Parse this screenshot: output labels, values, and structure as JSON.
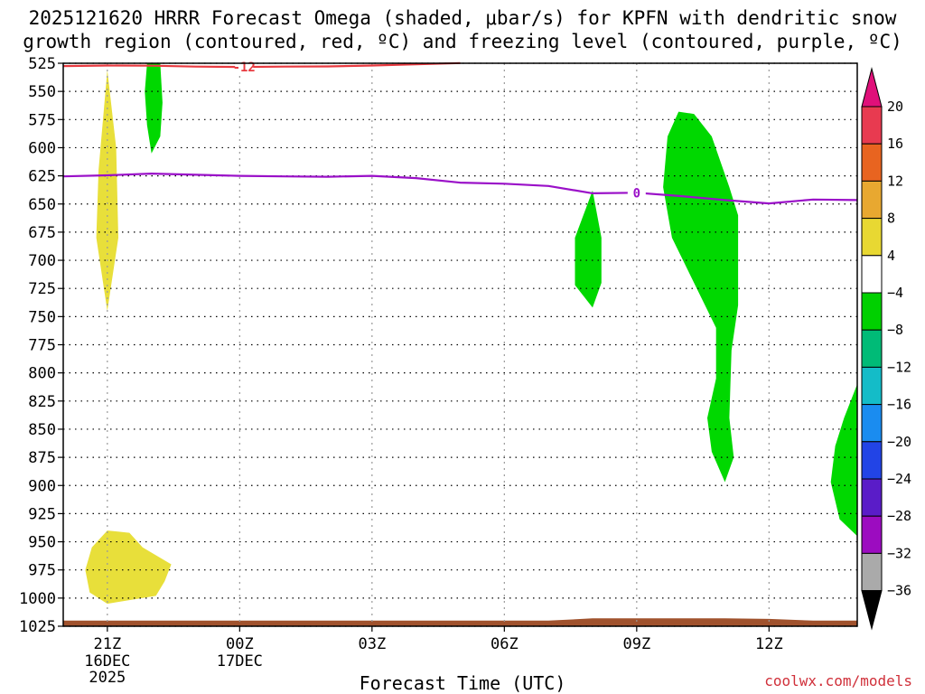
{
  "title_line1": "2025121620 HRRR Forecast Omega (shaded, μbar/s) for KPFN with dendritic snow",
  "title_line2": "growth region (contoured, red, ºC) and freezing level (contoured, purple, ºC)",
  "credit": "coolwx.com/models",
  "chart_data": {
    "type": "time-height",
    "title": "2025121620 HRRR Forecast Omega (shaded, μbar/s) for KPFN with dendritic snow growth region (contoured, red, ºC) and freezing level (contoured, purple, ºC)",
    "xlabel": "Forecast Time (UTC)",
    "ylabel": "",
    "xlim": [
      20,
      38
    ],
    "ylim": [
      525,
      1025
    ],
    "y_inverted": true,
    "grid": true,
    "y_ticks": [
      525,
      550,
      575,
      600,
      625,
      650,
      675,
      700,
      725,
      750,
      775,
      800,
      825,
      850,
      875,
      900,
      925,
      950,
      975,
      1000,
      1025
    ],
    "x_ticks": [
      {
        "x": 21,
        "label": "21Z",
        "sub": [
          "16DEC",
          "2025"
        ]
      },
      {
        "x": 24,
        "label": "00Z",
        "sub": [
          "17DEC"
        ]
      },
      {
        "x": 27,
        "label": "03Z",
        "sub": []
      },
      {
        "x": 30,
        "label": "06Z",
        "sub": []
      },
      {
        "x": 33,
        "label": "09Z",
        "sub": []
      },
      {
        "x": 36,
        "label": "12Z",
        "sub": []
      }
    ],
    "colorbar": {
      "levels": [
        20,
        16,
        12,
        8,
        4,
        -4,
        -8,
        -12,
        -16,
        -20,
        -24,
        -28,
        -32,
        -36
      ],
      "colors": [
        "#e83a50",
        "#e86420",
        "#e8a830",
        "#e8d832",
        "#ffffff",
        "#00d000",
        "#00bb77",
        "#14bcc8",
        "#1a8cf0",
        "#2244e6",
        "#5a1cc8",
        "#9c0cc0",
        "#aaaaaa"
      ],
      "top_arrow_color": "#e0107a",
      "bottom_arrow_color": "#000000"
    },
    "freezing_level": {
      "label": "0",
      "label_x": 33.0,
      "color": "#9a10c8",
      "points": [
        [
          20,
          625.5
        ],
        [
          21,
          624.5
        ],
        [
          22,
          623
        ],
        [
          23,
          624
        ],
        [
          24,
          625
        ],
        [
          25,
          625.5
        ],
        [
          26,
          625.8
        ],
        [
          27,
          625
        ],
        [
          28,
          627
        ],
        [
          29,
          631
        ],
        [
          30,
          632
        ],
        [
          31,
          634
        ],
        [
          32,
          640.5
        ],
        [
          33,
          640
        ],
        [
          34,
          643
        ],
        [
          35,
          646.5
        ],
        [
          36,
          649.5
        ],
        [
          37,
          646
        ],
        [
          38,
          646.5
        ]
      ]
    },
    "dgz_contour": {
      "label": "-12",
      "label_x": 24.1,
      "color": "#e83a40",
      "points": [
        [
          20,
          527.5
        ],
        [
          21,
          527
        ],
        [
          22,
          527.2
        ],
        [
          23,
          528
        ],
        [
          24,
          528.3
        ],
        [
          25,
          528
        ],
        [
          26,
          527.8
        ],
        [
          27,
          527
        ],
        [
          28,
          526
        ],
        [
          29,
          524.8
        ]
      ]
    },
    "omega_regions": [
      {
        "value": 4,
        "color": "#e8df3a",
        "points": [
          [
            21.0,
            531
          ],
          [
            21.2,
            600
          ],
          [
            21.25,
            680
          ],
          [
            21.0,
            745
          ],
          [
            20.75,
            680
          ],
          [
            20.8,
            620
          ]
        ]
      },
      {
        "value": 4,
        "color": "#e8df3a",
        "points": [
          [
            21.0,
            940
          ],
          [
            21.5,
            942
          ],
          [
            21.8,
            955
          ],
          [
            22.45,
            970
          ],
          [
            22.3,
            985
          ],
          [
            22.1,
            998
          ],
          [
            21.0,
            1005
          ],
          [
            20.6,
            995
          ],
          [
            20.5,
            975
          ],
          [
            20.65,
            955
          ]
        ]
      },
      {
        "value": -4,
        "color": "#00d800",
        "points": [
          [
            21.9,
            525
          ],
          [
            22.2,
            525
          ],
          [
            22.25,
            560
          ],
          [
            22.2,
            590
          ],
          [
            22.0,
            605
          ],
          [
            21.9,
            580
          ],
          [
            21.85,
            550
          ]
        ]
      },
      {
        "value": -4,
        "color": "#00d800",
        "points": [
          [
            32.0,
            638
          ],
          [
            32.2,
            680
          ],
          [
            32.2,
            720
          ],
          [
            32.0,
            742
          ],
          [
            31.6,
            722
          ],
          [
            31.6,
            680
          ]
        ]
      },
      {
        "value": -4,
        "color": "#00d800",
        "points": [
          [
            33.95,
            568
          ],
          [
            34.3,
            570
          ],
          [
            34.7,
            590
          ],
          [
            35.1,
            635
          ],
          [
            35.3,
            660
          ],
          [
            35.3,
            740
          ],
          [
            35.15,
            780
          ],
          [
            35.1,
            840
          ],
          [
            35.2,
            875
          ],
          [
            35.0,
            897
          ],
          [
            34.7,
            870
          ],
          [
            34.6,
            840
          ],
          [
            34.8,
            805
          ],
          [
            34.8,
            760
          ],
          [
            34.3,
            720
          ],
          [
            33.8,
            680
          ],
          [
            33.6,
            635
          ],
          [
            33.7,
            590
          ]
        ]
      },
      {
        "value": -4,
        "color": "#00d800",
        "points": [
          [
            38.0,
            810
          ],
          [
            37.7,
            840
          ],
          [
            37.5,
            865
          ],
          [
            37.4,
            897
          ],
          [
            37.6,
            930
          ],
          [
            38.0,
            945
          ]
        ]
      }
    ],
    "terrain": {
      "color": "#a0522d",
      "points": [
        [
          20,
          1020
        ],
        [
          31,
          1020
        ],
        [
          32,
          1018
        ],
        [
          34,
          1018
        ],
        [
          35,
          1018
        ],
        [
          36,
          1018.5
        ],
        [
          37,
          1020
        ],
        [
          38,
          1020
        ]
      ]
    }
  }
}
